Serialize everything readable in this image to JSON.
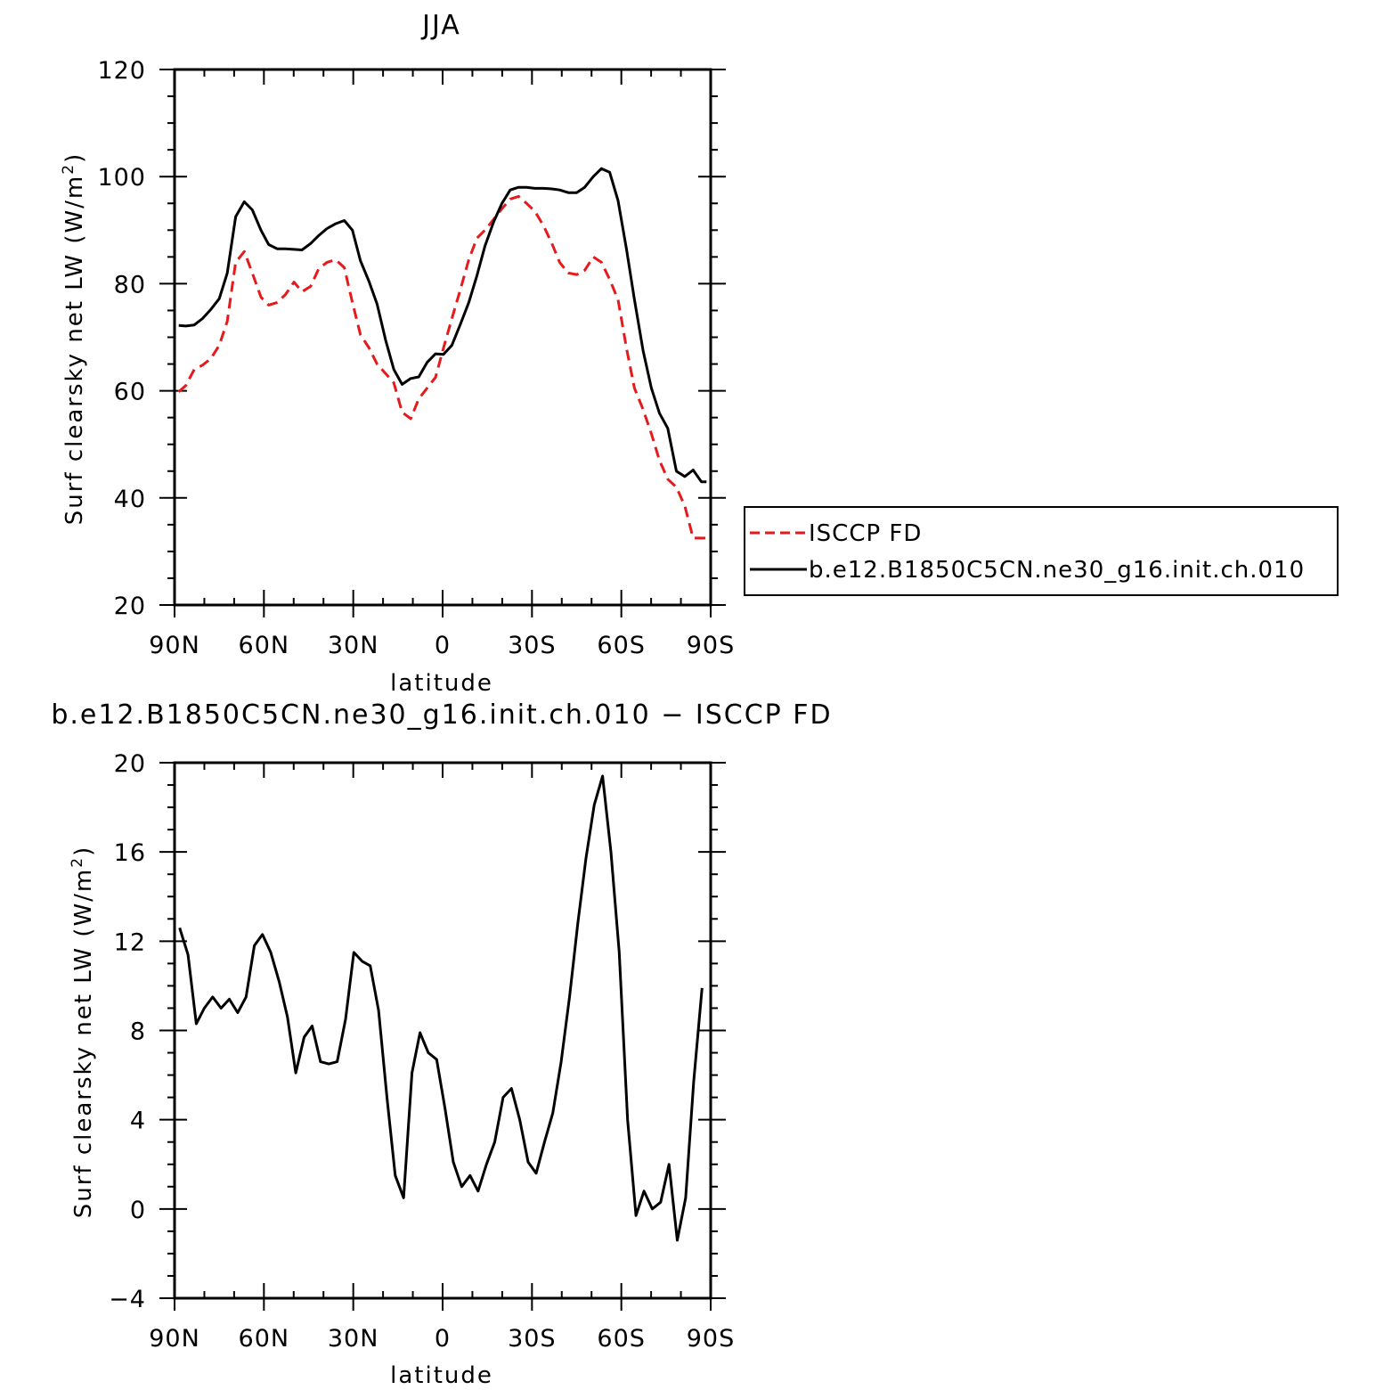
{
  "chart_data": [
    {
      "type": "line",
      "title": "JJA",
      "xlabel": "latitude",
      "ylabel_main": "Surf clearsky net LW (W/m",
      "ylabel_sup": "2",
      "ylabel_tail": ")",
      "xlim": [
        90,
        -90
      ],
      "ylim": [
        20,
        120
      ],
      "xticks": [
        90,
        60,
        30,
        0,
        -30,
        -60,
        -90
      ],
      "xtick_labels": [
        "90N",
        "60N",
        "30N",
        "0",
        "30S",
        "60S",
        "90S"
      ],
      "yticks": [
        20,
        40,
        60,
        80,
        100,
        120
      ],
      "ytick_labels": [
        "20",
        "40",
        "60",
        "80",
        "100",
        "120"
      ],
      "legend_placement": "right",
      "series": [
        {
          "name": "ISCCP FD",
          "color": "#e41a1c",
          "style": "dashed",
          "x": [
            88.6,
            86.2,
            83.4,
            80.6,
            77.8,
            75.0,
            72.3,
            69.5,
            66.6,
            63.9,
            61.0,
            58.4,
            55.5,
            52.7,
            49.9,
            47.2,
            44.3,
            41.6,
            38.8,
            35.9,
            33.0,
            30.3,
            27.6,
            24.7,
            22.0,
            19.1,
            16.4,
            13.6,
            10.7,
            8.0,
            5.2,
            2.4,
            -0.3,
            -3.1,
            -6.0,
            -8.8,
            -11.5,
            -14.2,
            -17.1,
            -19.9,
            -22.7,
            -25.5,
            -28.2,
            -31.0,
            -33.9,
            -36.7,
            -39.3,
            -42.2,
            -45.0,
            -47.7,
            -50.6,
            -53.3,
            -56.1,
            -58.9,
            -61.7,
            -64.4,
            -67.3,
            -70.1,
            -72.8,
            -75.6,
            -78.5,
            -81.3,
            -84.1,
            -86.9,
            -88.6
          ],
          "values": [
            59.8,
            61.0,
            64.0,
            64.8,
            66.0,
            68.5,
            73.0,
            84.0,
            86.0,
            82.0,
            77.5,
            76.0,
            76.5,
            78.0,
            80.3,
            78.5,
            79.5,
            82.8,
            84.0,
            84.5,
            83.0,
            76.5,
            70.5,
            68.0,
            65.0,
            63.2,
            61.5,
            56.0,
            54.8,
            58.5,
            60.5,
            62.5,
            68.0,
            73.5,
            79.0,
            84.5,
            88.5,
            90.0,
            92.0,
            94.0,
            95.8,
            96.3,
            95.0,
            93.5,
            90.8,
            87.5,
            84.0,
            82.0,
            81.7,
            82.5,
            85.0,
            84.0,
            80.8,
            77.0,
            68.0,
            60.5,
            56.5,
            52.0,
            47.0,
            43.5,
            42.0,
            38.5,
            32.5,
            32.5,
            32.5
          ]
        },
        {
          "name": "b.e12.B1850C5CN.ne30_g16.init.ch.010",
          "color": "#000000",
          "style": "solid",
          "x": [
            88.6,
            86.2,
            83.4,
            80.6,
            77.8,
            75.0,
            72.3,
            69.5,
            66.6,
            63.9,
            61.0,
            58.4,
            55.5,
            52.7,
            49.9,
            47.2,
            44.3,
            41.6,
            38.8,
            35.9,
            33.0,
            30.3,
            27.6,
            24.7,
            22.0,
            19.1,
            16.4,
            13.6,
            10.7,
            8.0,
            5.2,
            2.4,
            -0.3,
            -3.1,
            -6.0,
            -8.8,
            -11.5,
            -14.2,
            -17.1,
            -19.9,
            -22.7,
            -25.5,
            -28.2,
            -31.0,
            -33.9,
            -36.7,
            -39.3,
            -42.2,
            -45.0,
            -47.7,
            -50.6,
            -53.3,
            -56.1,
            -58.9,
            -61.7,
            -64.4,
            -67.3,
            -70.1,
            -72.8,
            -75.6,
            -78.5,
            -81.3,
            -84.1,
            -86.9,
            -88.6
          ],
          "values": [
            72.2,
            72.1,
            72.3,
            73.5,
            75.2,
            77.2,
            82.0,
            92.5,
            95.3,
            93.8,
            90.0,
            87.3,
            86.5,
            86.5,
            86.4,
            86.3,
            87.5,
            89.0,
            90.3,
            91.2,
            91.8,
            90.0,
            84.3,
            80.4,
            76.2,
            69.4,
            64.0,
            61.2,
            62.3,
            62.6,
            65.3,
            66.9,
            66.8,
            68.5,
            72.5,
            76.5,
            81.5,
            87.0,
            91.5,
            95.0,
            97.5,
            98.0,
            98.0,
            97.8,
            97.8,
            97.7,
            97.5,
            97.0,
            97.0,
            98.0,
            100.0,
            101.5,
            100.8,
            95.5,
            86.5,
            77.0,
            67.5,
            60.5,
            55.8,
            53.0,
            45.0,
            44.0,
            45.2,
            43.0,
            43.0
          ]
        }
      ]
    },
    {
      "type": "line",
      "title": "b.e12.B1850C5CN.ne30_g16.init.ch.010 − ISCCP FD",
      "xlabel": "latitude",
      "ylabel_main": "Surf clearsky net LW (W/m",
      "ylabel_sup": "2",
      "ylabel_tail": ")",
      "xlim": [
        90,
        -90
      ],
      "ylim": [
        -4,
        20
      ],
      "xticks": [
        90,
        60,
        30,
        0,
        -30,
        -60,
        -90
      ],
      "xtick_labels": [
        "90N",
        "60N",
        "30N",
        "0",
        "30S",
        "60S",
        "90S"
      ],
      "yticks": [
        -4,
        0,
        4,
        8,
        12,
        16,
        20
      ],
      "ytick_labels": [
        "−4",
        "0",
        "4",
        "8",
        "12",
        "16",
        "20"
      ],
      "series": [
        {
          "color": "#000000",
          "style": "solid",
          "x": [
            88.3,
            85.5,
            82.7,
            80.0,
            77.2,
            74.4,
            71.6,
            68.8,
            66.0,
            63.2,
            60.5,
            57.7,
            54.9,
            52.1,
            49.3,
            46.5,
            43.8,
            41.0,
            38.2,
            35.4,
            32.6,
            29.8,
            27.0,
            24.3,
            21.5,
            18.7,
            15.9,
            13.1,
            10.3,
            7.6,
            4.8,
            2.0,
            -0.8,
            -3.6,
            -6.4,
            -9.2,
            -11.9,
            -14.7,
            -17.5,
            -20.3,
            -23.1,
            -25.9,
            -28.7,
            -31.4,
            -34.2,
            -37.0,
            -39.8,
            -42.6,
            -45.4,
            -48.1,
            -50.9,
            -53.7,
            -56.5,
            -59.3,
            -62.1,
            -64.9,
            -67.6,
            -70.4,
            -73.2,
            -76.0,
            -78.8,
            -81.6,
            -84.3,
            -87.1
          ],
          "values": [
            12.6,
            11.4,
            8.3,
            9.0,
            9.5,
            9.0,
            9.4,
            8.8,
            9.5,
            11.8,
            12.3,
            11.5,
            10.2,
            8.6,
            6.1,
            7.7,
            8.2,
            6.6,
            6.5,
            6.6,
            8.5,
            11.5,
            11.1,
            10.9,
            8.9,
            5.0,
            1.5,
            0.5,
            6.1,
            7.9,
            7.0,
            6.7,
            4.5,
            2.1,
            1.0,
            1.5,
            0.8,
            2.0,
            3.0,
            5.0,
            5.4,
            4.0,
            2.1,
            1.6,
            3.0,
            4.3,
            6.6,
            9.5,
            12.8,
            15.7,
            18.1,
            19.4,
            16.0,
            11.5,
            4.0,
            -0.3,
            0.8,
            0.0,
            0.3,
            2.0,
            -1.4,
            0.5,
            5.7,
            9.9
          ]
        }
      ]
    }
  ]
}
